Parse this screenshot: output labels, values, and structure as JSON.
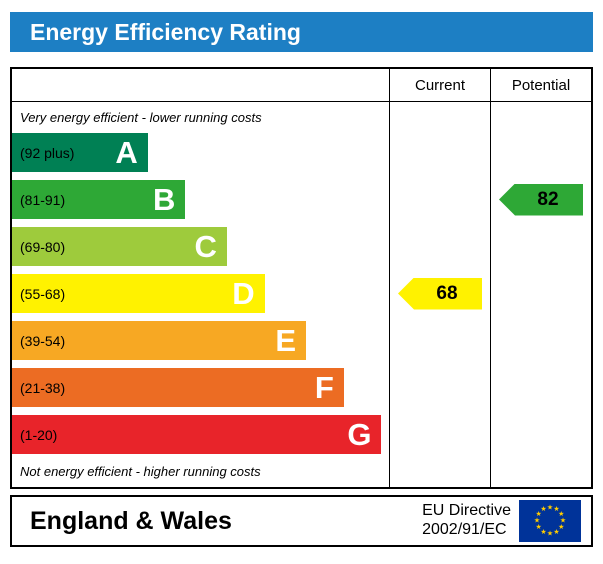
{
  "header": {
    "title": "Energy Efficiency Rating",
    "bg_color": "#1d7fc4"
  },
  "table": {
    "current_label": "Current",
    "potential_label": "Potential"
  },
  "notes": {
    "top": "Very energy efficient - lower running costs",
    "bottom": "Not energy efficient - higher running costs"
  },
  "bands": [
    {
      "letter": "A",
      "range": "(92 plus)",
      "color": "#008054",
      "width_pct": 36
    },
    {
      "letter": "B",
      "range": "(81-91)",
      "color": "#2ea836",
      "width_pct": 46
    },
    {
      "letter": "C",
      "range": "(69-80)",
      "color": "#9ecb3c",
      "width_pct": 57
    },
    {
      "letter": "D",
      "range": "(55-68)",
      "color": "#fff200",
      "width_pct": 67
    },
    {
      "letter": "E",
      "range": "(39-54)",
      "color": "#f7a823",
      "width_pct": 78
    },
    {
      "letter": "F",
      "range": "(21-38)",
      "color": "#ec6c23",
      "width_pct": 88
    },
    {
      "letter": "G",
      "range": "(1-20)",
      "color": "#e8242a",
      "width_pct": 98
    }
  ],
  "arrows": {
    "current": {
      "value": "68",
      "color": "#fff200",
      "text_color": "#000000",
      "band_index": 3
    },
    "potential": {
      "value": "82",
      "color": "#2ea836",
      "text_color": "#000000",
      "band_index": 1
    }
  },
  "footer": {
    "region": "England & Wales",
    "directive_line1": "EU Directive",
    "directive_line2": "2002/91/EC",
    "flag_field_color": "#003399",
    "flag_star_color": "#ffcc00"
  },
  "chart_data": {
    "type": "bar",
    "title": "Energy Efficiency Rating",
    "categories": [
      "A",
      "B",
      "C",
      "D",
      "E",
      "F",
      "G"
    ],
    "band_ranges": [
      "92 plus",
      "81-91",
      "69-80",
      "55-68",
      "39-54",
      "21-38",
      "1-20"
    ],
    "band_colors": [
      "#008054",
      "#2ea836",
      "#9ecb3c",
      "#fff200",
      "#f7a823",
      "#ec6c23",
      "#e8242a"
    ],
    "bar_widths_pct": [
      36,
      46,
      57,
      67,
      78,
      88,
      98
    ],
    "columns": [
      "Current",
      "Potential"
    ],
    "series": [
      {
        "name": "Current",
        "value": 68,
        "band": "D"
      },
      {
        "name": "Potential",
        "value": 82,
        "band": "B"
      }
    ],
    "annotation_top": "Very energy efficient - lower running costs",
    "annotation_bottom": "Not energy efficient - higher running costs",
    "footer_region": "England & Wales",
    "footer_directive": "EU Directive 2002/91/EC"
  }
}
